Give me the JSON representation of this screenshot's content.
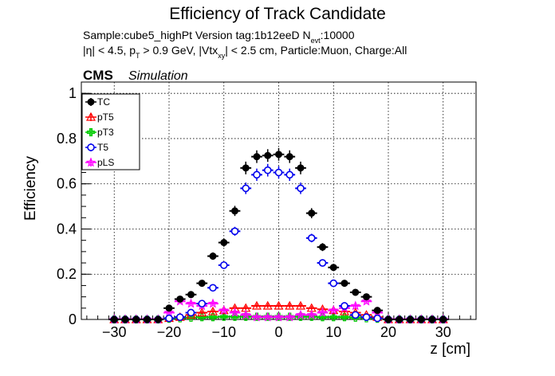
{
  "chart_data": {
    "type": "scatter",
    "title": "Efficiency of Track Candidate",
    "subtitle_sample": "Sample:cube5_highPt   Version tag:1b12eeD  N",
    "subtitle_sample_sub": "evt",
    "subtitle_sample_end": ":10000",
    "cuts": {
      "eta": "|η| < 4.5, p",
      "pt_sub": "T",
      "pt": " > 0.9 GeV, |Vtx",
      "vtx_sub": "xy",
      "rest": "| < 2.5 cm, Particle:Muon, Charge:All"
    },
    "cms_label": "CMS",
    "simulation_label": "Simulation",
    "xlabel": "z [cm]",
    "ylabel": "Efficiency",
    "xlim": [
      -36,
      36
    ],
    "ylim": [
      0,
      1.05
    ],
    "x_ticks": [
      -30,
      -20,
      -10,
      0,
      10,
      20,
      30
    ],
    "y_ticks": [
      0,
      0.2,
      0.4,
      0.6,
      0.8,
      1
    ],
    "y_tick_labels": [
      "0",
      "0.2",
      "0.4",
      "0.6",
      "0.8",
      "1"
    ],
    "grid": true,
    "legend_position": "top-left",
    "x": [
      -30,
      -28,
      -26,
      -24,
      -22,
      -20,
      -18,
      -16,
      -14,
      -12,
      -10,
      -8,
      -6,
      -4,
      -2,
      0,
      2,
      4,
      6,
      8,
      10,
      12,
      14,
      16,
      18,
      20,
      22,
      24,
      26,
      28,
      30
    ],
    "x_err": 1,
    "series": [
      {
        "name": "TC",
        "color": "#000000",
        "marker": "filled-circle",
        "values": [
          0,
          0,
          0,
          0,
          0,
          0.05,
          0.09,
          0.11,
          0.16,
          0.28,
          0.34,
          0.48,
          0.67,
          0.72,
          0.725,
          0.73,
          0.72,
          0.67,
          0.47,
          0.32,
          0.23,
          0.16,
          0.12,
          0.1,
          0.04,
          0,
          0,
          0,
          0,
          0,
          0
        ]
      },
      {
        "name": "pT5",
        "color": "#ff0000",
        "marker": "open-triangle",
        "values": [
          0,
          0,
          0,
          0,
          0,
          0.005,
          0.01,
          0.02,
          0.03,
          0.035,
          0.04,
          0.05,
          0.05,
          0.06,
          0.06,
          0.06,
          0.06,
          0.06,
          0.05,
          0.045,
          0.04,
          0.035,
          0.03,
          0.02,
          0.01,
          0,
          0,
          0,
          0,
          0,
          0
        ]
      },
      {
        "name": "pT3",
        "color": "#00cc00",
        "marker": "open-cross",
        "values": [
          0,
          0,
          0,
          0,
          0,
          0.003,
          0.005,
          0.008,
          0.01,
          0.01,
          0.012,
          0.012,
          0.012,
          0.012,
          0.012,
          0.012,
          0.012,
          0.012,
          0.012,
          0.01,
          0.01,
          0.01,
          0.008,
          0.005,
          0.003,
          0,
          0,
          0,
          0,
          0,
          0
        ]
      },
      {
        "name": "T5",
        "color": "#0000ee",
        "marker": "open-circle",
        "values": [
          0,
          0,
          0,
          0,
          0,
          0.005,
          0.01,
          0.03,
          0.07,
          0.14,
          0.24,
          0.39,
          0.58,
          0.64,
          0.66,
          0.65,
          0.64,
          0.58,
          0.36,
          0.25,
          0.16,
          0.06,
          0.02,
          0.01,
          0.005,
          0,
          0,
          0,
          0,
          0,
          0
        ]
      },
      {
        "name": "pLS",
        "color": "#ff00ff",
        "marker": "open-star",
        "values": [
          0,
          0,
          0,
          0,
          0,
          0.03,
          0.08,
          0.07,
          0.06,
          0.07,
          0.04,
          0.03,
          0.02,
          0.01,
          0.01,
          0.01,
          0.01,
          0.02,
          0.02,
          0.03,
          0.04,
          0.05,
          0.06,
          0.08,
          0.03,
          0,
          0,
          0,
          0,
          0,
          0
        ]
      }
    ]
  }
}
